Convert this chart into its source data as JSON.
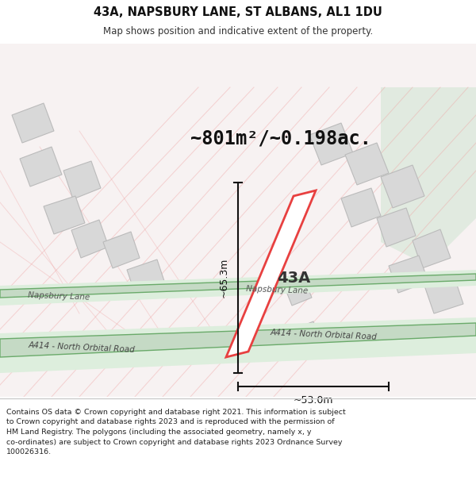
{
  "title": "43A, NAPSBURY LANE, ST ALBANS, AL1 1DU",
  "subtitle": "Map shows position and indicative extent of the property.",
  "area_text": "~801m²/~0.198ac.",
  "label_43A": "43A",
  "dim_width": "~53.0m",
  "dim_height": "~65.3m",
  "footer": "Contains OS data © Crown copyright and database right 2021. This information is subject\nto Crown copyright and database rights 2023 and is reproduced with the permission of\nHM Land Registry. The polygons (including the associated geometry, namely x, y\nco-ordinates) are subject to Crown copyright and database rights 2023 Ordnance Survey\n100026316.",
  "map_bg": "#f7f2f2",
  "road_green_fill": "#c5dac5",
  "road_green_edge": "#6aaa6a",
  "road_green_shadow": "#ddeedd",
  "red_line": "#e84040",
  "bldg_fill": "#d8d8d8",
  "bldg_edge": "#bbbbbb",
  "pink_line": "#f0a0a0",
  "dim_color": "#111111",
  "napsbury_label": "Napsbury Lane",
  "a414_label": "A414 - North Orbital Road"
}
